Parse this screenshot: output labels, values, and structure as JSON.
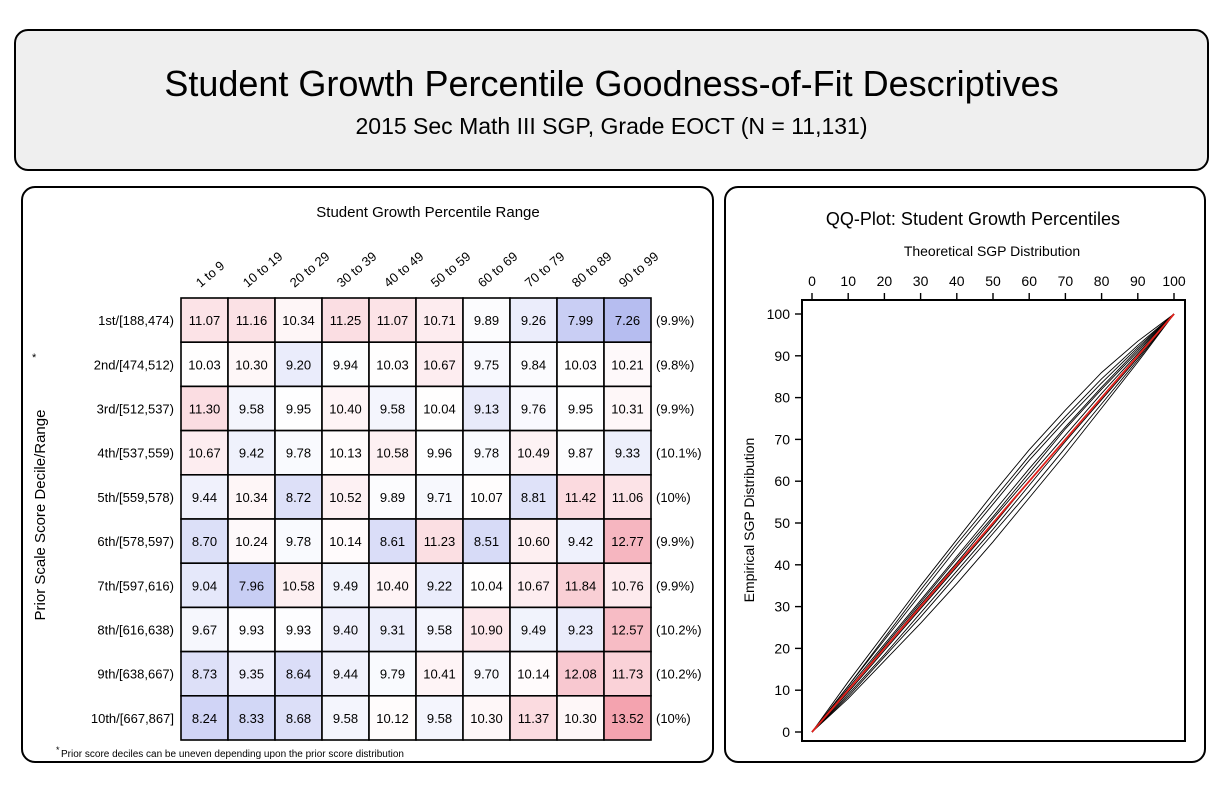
{
  "header": {
    "title": "Student Growth Percentile Goodness-of-Fit Descriptives",
    "subtitle": "2015 Sec Math III SGP, Grade EOCT (N = 11,131)"
  },
  "colors": {
    "high": "#e8405a",
    "low": "#3c4fd8",
    "qq_reference": "#e0201a",
    "qq_lines": "#000000"
  },
  "heatmap": {
    "x_title": "Student Growth Percentile Range",
    "y_title": "Prior Scale Score Decile/Range",
    "asterisk": "*",
    "footnote_mark": "*",
    "footnote": "Prior score deciles can be uneven depending upon the prior score distribution"
  },
  "chart_data": [
    {
      "type": "heatmap",
      "xlabel": "Student Growth Percentile Range",
      "ylabel": "Prior Scale Score Decile/Range",
      "columns": [
        "1 to 9",
        "10 to 19",
        "20 to 29",
        "30 to 39",
        "40 to 49",
        "50 to 59",
        "60 to 69",
        "70 to 79",
        "80 to 89",
        "90 to 99"
      ],
      "rows": [
        "1st/[188,474)",
        "2nd/[474,512)",
        "3rd/[512,537)",
        "4th/[537,559)",
        "5th/[559,578)",
        "6th/[578,597)",
        "7th/[597,616)",
        "8th/[616,638)",
        "9th/[638,667)",
        "10th/[667,867]"
      ],
      "row_percents": [
        "(9.9%)",
        "(9.8%)",
        "(9.9%)",
        "(10.1%)",
        "(10%)",
        "(9.9%)",
        "(9.9%)",
        "(10.2%)",
        "(10.2%)",
        "(10%)"
      ],
      "values": [
        [
          "11.07",
          "11.16",
          "10.34",
          "11.25",
          "11.07",
          "10.71",
          "9.89",
          "9.26",
          "7.99",
          "7.26"
        ],
        [
          "10.03",
          "10.30",
          "9.20",
          "9.94",
          "10.03",
          "10.67",
          "9.75",
          "9.84",
          "10.03",
          "10.21"
        ],
        [
          "11.30",
          "9.58",
          "9.95",
          "10.40",
          "9.58",
          "10.04",
          "9.13",
          "9.76",
          "9.95",
          "10.31"
        ],
        [
          "10.67",
          "9.42",
          "9.78",
          "10.13",
          "10.58",
          "9.96",
          "9.78",
          "10.49",
          "9.87",
          "9.33"
        ],
        [
          "9.44",
          "10.34",
          "8.72",
          "10.52",
          "9.89",
          "9.71",
          "10.07",
          "8.81",
          "11.42",
          "11.06"
        ],
        [
          "8.70",
          "10.24",
          "9.78",
          "10.14",
          "8.61",
          "11.23",
          "8.51",
          "10.60",
          "9.42",
          "12.77"
        ],
        [
          "9.04",
          "7.96",
          "10.58",
          "9.49",
          "10.40",
          "9.22",
          "10.04",
          "10.67",
          "11.84",
          "10.76"
        ],
        [
          "9.67",
          "9.93",
          "9.93",
          "9.40",
          "9.31",
          "9.58",
          "10.90",
          "9.49",
          "9.23",
          "12.57"
        ],
        [
          "8.73",
          "9.35",
          "8.64",
          "9.44",
          "9.79",
          "10.41",
          "9.70",
          "10.14",
          "12.08",
          "11.73"
        ],
        [
          "8.24",
          "8.33",
          "8.68",
          "9.58",
          "10.12",
          "9.58",
          "10.30",
          "11.37",
          "10.30",
          "13.52"
        ]
      ]
    },
    {
      "type": "line",
      "title": "QQ-Plot: Student Growth Percentiles",
      "xlabel": "Theoretical SGP Distribution",
      "ylabel": "Empirical SGP Distribution",
      "xlim": [
        0,
        100
      ],
      "ylim": [
        0,
        100
      ],
      "x_ticks": [
        "0",
        "10",
        "20",
        "30",
        "40",
        "50",
        "60",
        "70",
        "80",
        "90",
        "100"
      ],
      "y_ticks": [
        "0",
        "10",
        "20",
        "30",
        "40",
        "50",
        "60",
        "70",
        "80",
        "90",
        "100"
      ],
      "reference_line": [
        [
          0,
          0
        ],
        [
          100,
          100
        ]
      ],
      "x": [
        0,
        10,
        20,
        30,
        40,
        50,
        60,
        70,
        80,
        90,
        100
      ],
      "series": [
        {
          "values": [
            0,
            12,
            23.5,
            35,
            46,
            57,
            67.5,
            77,
            86,
            93.5,
            100
          ]
        },
        {
          "values": [
            0,
            11,
            22.5,
            34,
            45,
            55.5,
            66,
            75.5,
            84.5,
            92.5,
            100
          ]
        },
        {
          "values": [
            0,
            11,
            22,
            33,
            44,
            54.5,
            65,
            74.5,
            83.5,
            92,
            100
          ]
        },
        {
          "values": [
            0,
            10.5,
            21,
            31.5,
            42,
            52.5,
            63,
            73,
            82.5,
            91.5,
            100
          ]
        },
        {
          "values": [
            0,
            10,
            20.5,
            31,
            41.5,
            51.5,
            62,
            72.5,
            82,
            91,
            100
          ]
        },
        {
          "values": [
            0,
            10,
            20,
            30.5,
            40.5,
            51,
            61,
            71,
            81,
            90.5,
            100
          ]
        },
        {
          "values": [
            0,
            9.5,
            19.5,
            29.5,
            39.5,
            49.5,
            60,
            70,
            80,
            90,
            100
          ]
        },
        {
          "values": [
            0,
            9,
            18.5,
            28.5,
            38.5,
            48.5,
            59,
            69.5,
            79.5,
            89.5,
            100
          ]
        },
        {
          "values": [
            0,
            8.5,
            18,
            27.5,
            37.5,
            47.5,
            57.5,
            68,
            78.5,
            89,
            100
          ]
        },
        {
          "values": [
            0,
            8,
            17,
            26,
            35.5,
            45.5,
            56,
            66.5,
            77.5,
            88.5,
            100
          ]
        }
      ]
    }
  ]
}
